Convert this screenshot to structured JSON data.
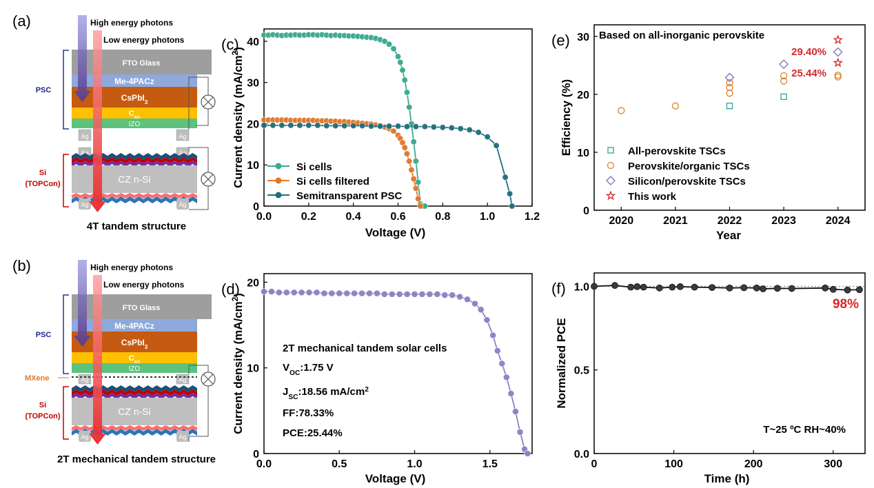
{
  "panels": {
    "a": {
      "letter": "(a)",
      "high_photons": "High energy photons",
      "low_photons": "Low energy photons",
      "layers": {
        "fto": "FTO Glass",
        "me4pacz": "Me-4PACz",
        "cspbi3": "CsPbI",
        "cspbi3_sub": "3",
        "c60": "C",
        "c60_sub": "60",
        "izo": "IZO",
        "czsi": "CZ n-Si",
        "ag": "Ag"
      },
      "psc_label": "PSC",
      "si_label_1": "Si",
      "si_label_2": "(TOPCon)",
      "caption": "4T tandem structure"
    },
    "b": {
      "letter": "(b)",
      "high_photons": "High energy photons",
      "low_photons": "Low energy photons",
      "layers": {
        "fto": "FTO Glass",
        "me4pacz": "Me-4PACz",
        "cspbi3": "CsPbI",
        "cspbi3_sub": "3",
        "c60": "C",
        "c60_sub": "60",
        "izo": "IZO",
        "czsi": "CZ n-Si",
        "ag": "Ag"
      },
      "psc_label": "PSC",
      "mxene_label": "MXene",
      "si_label_1": "Si",
      "si_label_2": "(TOPCon)",
      "caption": "2T mechanical tandem structure"
    }
  },
  "colors": {
    "si": "#3aa98e",
    "si_filtered": "#e0782a",
    "psc": "#1f6e7e",
    "tandem": "#8a82c4",
    "red": "#d62728",
    "all_perovskite": "#2ca58d",
    "perovskite_organic": "#d9822b",
    "silicon_perovskite": "#7a72b8",
    "fto": "#9e9e9e",
    "me4pacz": "#8ea9db",
    "cspbi3": "#c55a11",
    "c60": "#ffc000",
    "izo": "#5cc27c",
    "czsi": "#bfbfbf"
  },
  "chart_data": [
    {
      "id": "c",
      "panel_letter": "(c)",
      "type": "line",
      "xlabel": "Voltage (V)",
      "ylabel": "Current density (mA/cm",
      "ylabel_sup": "2",
      "ylabel_end": ")",
      "xlim": [
        0,
        1.2
      ],
      "ylim": [
        0,
        43
      ],
      "xticks": [
        "0.0",
        "0.2",
        "0.4",
        "0.6",
        "0.8",
        "1.0",
        "1.2"
      ],
      "xtick_values": [
        0,
        0.2,
        0.4,
        0.6,
        0.8,
        1.0,
        1.2
      ],
      "yticks": [
        "0",
        "10",
        "20",
        "30",
        "40"
      ],
      "ytick_values": [
        0,
        10,
        20,
        30,
        40
      ],
      "legend_position": "bottom-left",
      "series": [
        {
          "name": "Si cells",
          "color_key": "si",
          "x": [
            0,
            0.02,
            0.04,
            0.06,
            0.08,
            0.1,
            0.12,
            0.14,
            0.16,
            0.18,
            0.2,
            0.22,
            0.24,
            0.26,
            0.28,
            0.3,
            0.32,
            0.34,
            0.36,
            0.38,
            0.4,
            0.42,
            0.44,
            0.46,
            0.48,
            0.5,
            0.52,
            0.54,
            0.56,
            0.58,
            0.6,
            0.61,
            0.62,
            0.63,
            0.64,
            0.65,
            0.66,
            0.67,
            0.68,
            0.69,
            0.7,
            0.71,
            0.72
          ],
          "y": [
            41.5,
            41.5,
            41.6,
            41.5,
            41.4,
            41.5,
            41.5,
            41.6,
            41.5,
            41.5,
            41.6,
            41.6,
            41.5,
            41.6,
            41.5,
            41.4,
            41.5,
            41.4,
            41.4,
            41.3,
            41.3,
            41.2,
            41.1,
            41.0,
            40.9,
            40.7,
            40.4,
            40.0,
            39.3,
            38.2,
            36.3,
            34.9,
            33.0,
            30.6,
            27.6,
            24.0,
            20.0,
            15.6,
            10.9,
            5.8,
            0.5,
            -1,
            -2
          ]
        },
        {
          "name": "Si cells filtered",
          "color_key": "si_filtered",
          "x": [
            0,
            0.02,
            0.04,
            0.06,
            0.08,
            0.1,
            0.12,
            0.14,
            0.16,
            0.18,
            0.2,
            0.22,
            0.24,
            0.26,
            0.28,
            0.3,
            0.32,
            0.34,
            0.36,
            0.38,
            0.4,
            0.42,
            0.44,
            0.46,
            0.48,
            0.5,
            0.52,
            0.54,
            0.56,
            0.58,
            0.6,
            0.61,
            0.62,
            0.63,
            0.64,
            0.65,
            0.66,
            0.67,
            0.68,
            0.69,
            0.7
          ],
          "y": [
            20.9,
            20.9,
            20.9,
            20.9,
            20.9,
            20.9,
            20.8,
            20.8,
            20.8,
            20.8,
            20.8,
            20.8,
            20.7,
            20.7,
            20.7,
            20.6,
            20.6,
            20.5,
            20.5,
            20.4,
            20.3,
            20.2,
            20.1,
            20.0,
            19.9,
            19.7,
            19.5,
            19.2,
            18.8,
            18.2,
            17.2,
            16.4,
            15.4,
            14.2,
            12.7,
            10.9,
            8.8,
            6.6,
            4.3,
            1.8,
            -0.5
          ]
        },
        {
          "name": "Semitransparent PSC",
          "color_key": "psc",
          "x": [
            0,
            0.04,
            0.08,
            0.12,
            0.16,
            0.2,
            0.24,
            0.28,
            0.32,
            0.36,
            0.4,
            0.44,
            0.48,
            0.52,
            0.56,
            0.6,
            0.64,
            0.68,
            0.72,
            0.76,
            0.8,
            0.84,
            0.88,
            0.92,
            0.96,
            1.0,
            1.04,
            1.08,
            1.1,
            1.11
          ],
          "y": [
            19.6,
            19.6,
            19.6,
            19.6,
            19.6,
            19.6,
            19.6,
            19.5,
            19.5,
            19.5,
            19.5,
            19.5,
            19.4,
            19.4,
            19.4,
            19.4,
            19.3,
            19.3,
            19.3,
            19.2,
            19.1,
            19.0,
            18.8,
            18.5,
            17.9,
            16.8,
            14.7,
            7.0,
            3,
            0
          ]
        }
      ]
    },
    {
      "id": "d",
      "panel_letter": "(d)",
      "type": "line",
      "xlabel": "Voltage (V)",
      "ylabel": "Current density (mA/cm",
      "ylabel_sup": "2",
      "ylabel_end": ")",
      "xlim": [
        0,
        1.78
      ],
      "ylim": [
        0,
        21
      ],
      "xticks": [
        "0.0",
        "0.5",
        "1.0",
        "1.5"
      ],
      "xtick_values": [
        0,
        0.5,
        1.0,
        1.5
      ],
      "yticks": [
        "0",
        "10",
        "20"
      ],
      "ytick_values": [
        0,
        10,
        20
      ],
      "annotations": {
        "title": "2T mechanical tandem solar cells",
        "voc_label": "V",
        "voc_sub": "OC",
        "voc_value": ":1.75 V",
        "jsc_label": "J",
        "jsc_sub": "SC",
        "jsc_value": ":18.56 mA/cm",
        "jsc_sup": "2",
        "ff": "FF:78.33%",
        "pce": "PCE:25.44%"
      },
      "series": [
        {
          "name": "",
          "color_key": "tandem",
          "x": [
            0,
            0.05,
            0.1,
            0.15,
            0.2,
            0.25,
            0.3,
            0.35,
            0.4,
            0.45,
            0.5,
            0.55,
            0.6,
            0.65,
            0.7,
            0.75,
            0.8,
            0.85,
            0.9,
            0.95,
            1.0,
            1.05,
            1.1,
            1.15,
            1.2,
            1.25,
            1.3,
            1.35,
            1.4,
            1.44,
            1.48,
            1.52,
            1.55,
            1.58,
            1.61,
            1.64,
            1.67,
            1.7,
            1.73,
            1.75
          ],
          "y": [
            18.9,
            18.9,
            18.8,
            18.8,
            18.8,
            18.8,
            18.8,
            18.8,
            18.7,
            18.7,
            18.7,
            18.7,
            18.7,
            18.7,
            18.7,
            18.7,
            18.6,
            18.6,
            18.6,
            18.6,
            18.6,
            18.6,
            18.6,
            18.6,
            18.5,
            18.5,
            18.3,
            18.0,
            17.5,
            16.8,
            15.6,
            13.8,
            12.0,
            10.5,
            8.9,
            7.0,
            4.9,
            2.5,
            0.5,
            0
          ]
        }
      ]
    },
    {
      "id": "e",
      "panel_letter": "(e)",
      "type": "scatter",
      "title": "Based on all-inorganic perovskite",
      "xlabel": "Year",
      "ylabel": "Efficiency (%)",
      "xlim": [
        2019.5,
        2024.5
      ],
      "ylim": [
        0,
        32
      ],
      "xticks": [
        "2020",
        "2021",
        "2022",
        "2023",
        "2024"
      ],
      "xtick_values": [
        2020,
        2021,
        2022,
        2023,
        2024
      ],
      "yticks": [
        "0",
        "10",
        "20",
        "30"
      ],
      "ytick_values": [
        0,
        10,
        20,
        30
      ],
      "legend_position": "bottom-left",
      "series": [
        {
          "name": "All-perovskite TSCs",
          "marker": "square",
          "color_key": "all_perovskite",
          "x": [
            2022,
            2023
          ],
          "y": [
            18.0,
            19.6
          ]
        },
        {
          "name": "Perovskite/organic TSCs",
          "marker": "circle",
          "color_key": "perovskite_organic",
          "x": [
            2020,
            2021,
            2022,
            2022,
            2022,
            2023,
            2023,
            2024,
            2024
          ],
          "y": [
            17.2,
            18.0,
            20.2,
            21.2,
            22.0,
            22.3,
            23.2,
            23.0,
            23.3
          ]
        },
        {
          "name": "Silicon/perovskite TSCs",
          "marker": "diamond",
          "color_key": "silicon_perovskite",
          "x": [
            2022,
            2023,
            2024
          ],
          "y": [
            22.9,
            25.2,
            27.3
          ]
        },
        {
          "name": "This work",
          "marker": "star",
          "color_key": "red",
          "x": [
            2024,
            2024
          ],
          "y": [
            29.4,
            25.44
          ]
        }
      ],
      "point_labels": [
        "29.40%",
        "25.44%"
      ]
    },
    {
      "id": "f",
      "panel_letter": "(f)",
      "type": "line",
      "xlabel": "Time (h)",
      "ylabel": "Normalized PCE",
      "xlim": [
        0,
        340
      ],
      "ylim": [
        0,
        1.08
      ],
      "xticks": [
        "0",
        "100",
        "200",
        "300"
      ],
      "xtick_values": [
        0,
        100,
        200,
        300
      ],
      "yticks": [
        "0.0",
        "0.5",
        "1.0"
      ],
      "ytick_values": [
        0,
        0.5,
        1.0
      ],
      "end_label": "98%",
      "condition_text": "T~25 ºC   RH~40%",
      "series": [
        {
          "name": "",
          "color_key": "black",
          "x": [
            0,
            26,
            46,
            54,
            62,
            82,
            98,
            108,
            126,
            148,
            170,
            188,
            204,
            212,
            230,
            248,
            290,
            300,
            318,
            333
          ],
          "y": [
            1.0,
            1.005,
            0.995,
            0.998,
            0.995,
            0.99,
            0.995,
            0.998,
            0.995,
            0.993,
            0.99,
            0.992,
            0.99,
            0.985,
            0.988,
            0.987,
            0.99,
            0.982,
            0.978,
            0.98
          ]
        }
      ]
    }
  ]
}
